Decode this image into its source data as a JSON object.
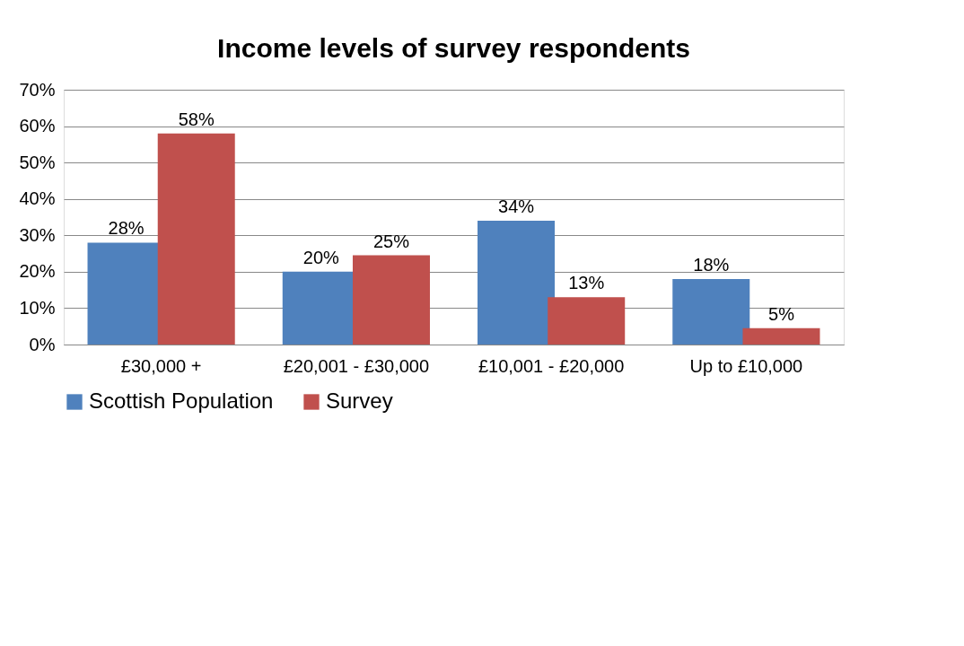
{
  "chart_data": {
    "type": "bar",
    "title": "Income levels of survey respondents",
    "categories": [
      "£30,000 +",
      "£20,001 - £30,000",
      "£10,001 - £20,000",
      "Up to £10,000"
    ],
    "series": [
      {
        "name": "Scottish Population",
        "color": "#4f81bd",
        "values": [
          28,
          20,
          34,
          18
        ],
        "value_labels": [
          "28%",
          "20%",
          "34%",
          "18%"
        ]
      },
      {
        "name": "Survey",
        "color": "#c0504d",
        "values": [
          58,
          24.5,
          13,
          4.5
        ],
        "value_labels": [
          "58%",
          "25%",
          "13%",
          "5%"
        ]
      }
    ],
    "ylim": [
      0,
      70
    ],
    "yticks": [
      {
        "value": 0,
        "label": "0%"
      },
      {
        "value": 10,
        "label": "10%"
      },
      {
        "value": 20,
        "label": "20%"
      },
      {
        "value": 30,
        "label": "30%"
      },
      {
        "value": 40,
        "label": "40%"
      },
      {
        "value": 50,
        "label": "50%"
      },
      {
        "value": 60,
        "label": "60%"
      },
      {
        "value": 70,
        "label": "70%"
      }
    ],
    "grid": "y",
    "legend": "bottom"
  }
}
